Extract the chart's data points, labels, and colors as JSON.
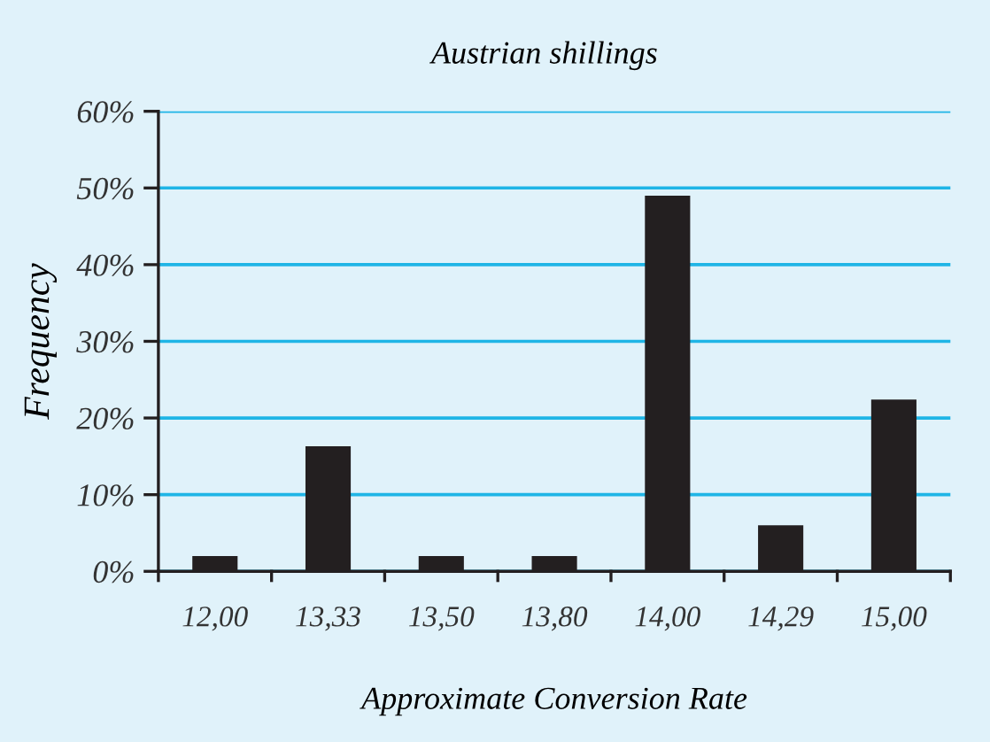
{
  "chart_data": {
    "type": "bar",
    "title": "Austrian shillings",
    "xlabel": "Approximate Conversion Rate",
    "ylabel": "Frequency",
    "categories": [
      "12,00",
      "13,33",
      "13,50",
      "13,80",
      "14,00",
      "14,29",
      "15,00"
    ],
    "values": [
      2.0,
      16.3,
      2.0,
      2.0,
      49.0,
      6.0,
      22.4
    ],
    "color": "#231f20",
    "ylim": [
      0,
      60
    ],
    "yticks": [
      {
        "value": 0,
        "label": "0%"
      },
      {
        "value": 10,
        "label": "10%"
      },
      {
        "value": 20,
        "label": "20%"
      },
      {
        "value": 30,
        "label": "30%"
      },
      {
        "value": 40,
        "label": "40%"
      },
      {
        "value": 50,
        "label": "50%"
      },
      {
        "value": 60,
        "label": "60%"
      }
    ],
    "grid": "y"
  }
}
